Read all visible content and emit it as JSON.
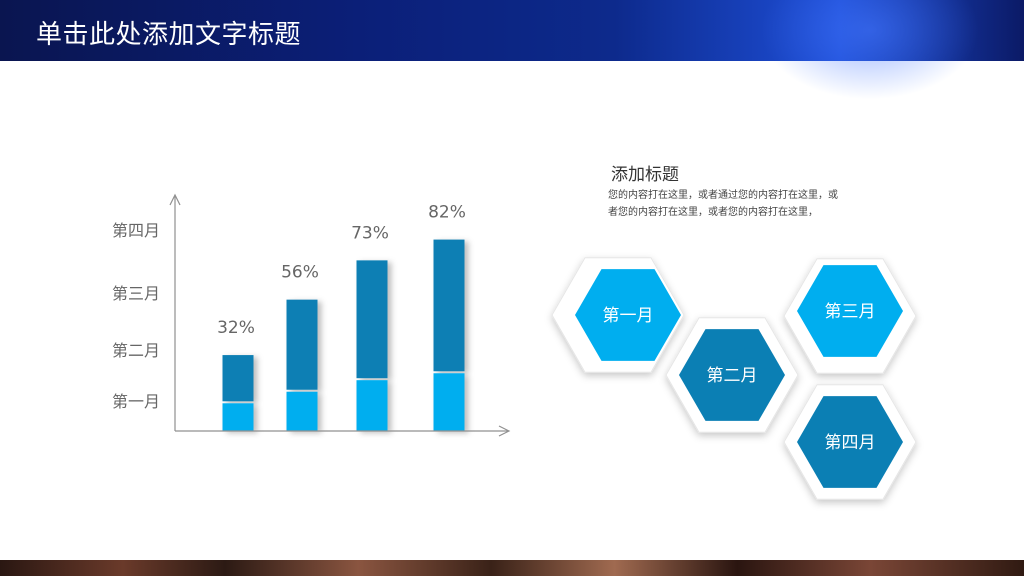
{
  "header": {
    "title": "单击此处添加文字标题"
  },
  "chart_data": {
    "type": "bar",
    "categories": [
      "",
      "",
      "",
      ""
    ],
    "y_tick_labels": [
      "第一月",
      "第二月",
      "第三月",
      "第四月"
    ],
    "series": [
      {
        "values": [
          12,
          17,
          22,
          25
        ]
      },
      {
        "values": [
          20,
          39,
          51,
          57
        ]
      }
    ],
    "totals": [
      32,
      56,
      73,
      82
    ],
    "data_labels": [
      "32%",
      "56%",
      "73%",
      "82%"
    ],
    "ylim": [
      0,
      100
    ],
    "colors": [
      "#00aeef",
      "#0b7fb4"
    ],
    "title": "",
    "xlabel": "",
    "ylabel": ""
  },
  "text_block": {
    "title": "添加标题",
    "body": "您的内容打在这里，或者通过您的内容打在这里，或者您的内容打在这里，或者您的内容打在这里，"
  },
  "hexagons": [
    {
      "label": "第一月",
      "color": "#00aeef"
    },
    {
      "label": "第二月",
      "color": "#0b7fb4"
    },
    {
      "label": "第三月",
      "color": "#00aeef"
    },
    {
      "label": "第四月",
      "color": "#0b7fb4"
    }
  ]
}
